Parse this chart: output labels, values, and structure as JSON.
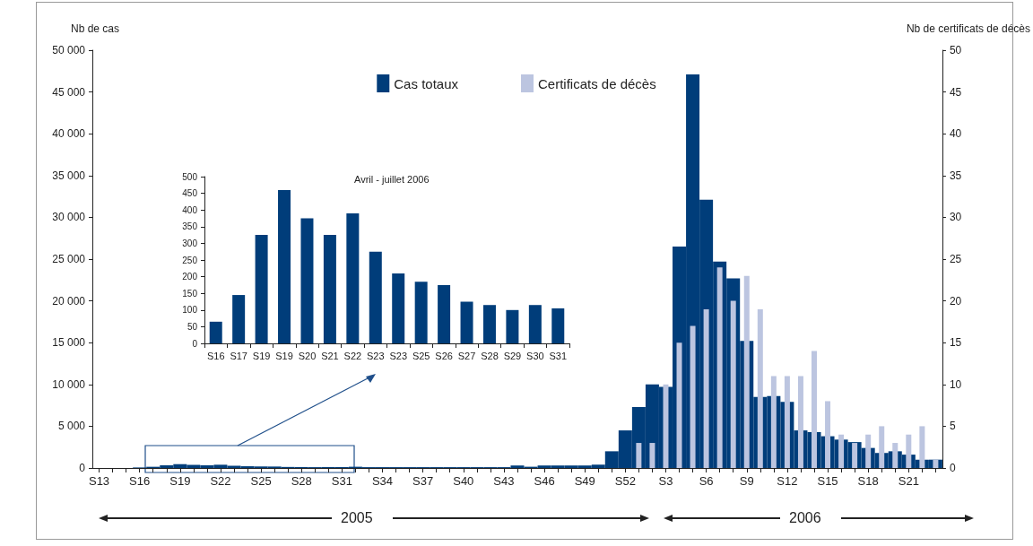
{
  "chart_data": [
    {
      "type": "bar",
      "ylabel": "Nb de cas",
      "y2label": "Nb de certificats de décès",
      "categories": [
        "S13",
        null,
        null,
        "S16",
        null,
        null,
        "S19",
        null,
        null,
        "S22",
        null,
        null,
        "S25",
        null,
        null,
        "S28",
        null,
        null,
        "S31",
        null,
        null,
        "S34",
        null,
        null,
        "S37",
        null,
        null,
        "S40",
        null,
        null,
        "S43",
        null,
        null,
        "S46",
        null,
        null,
        "S49",
        null,
        null,
        "S52",
        null,
        null,
        "S3",
        null,
        null,
        "S6",
        null,
        null,
        "S9",
        null,
        null,
        "S12",
        null,
        null,
        "S15",
        null,
        null,
        "S18",
        null,
        null,
        "S21",
        null,
        null
      ],
      "series": [
        {
          "name": "Cas totaux",
          "color": "#003d7a",
          "values": [
            0,
            0,
            0,
            65,
            145,
            325,
            460,
            375,
            325,
            390,
            275,
            210,
            185,
            175,
            125,
            115,
            100,
            115,
            105,
            150,
            100,
            100,
            100,
            100,
            100,
            100,
            100,
            100,
            100,
            100,
            100,
            300,
            150,
            300,
            300,
            300,
            300,
            400,
            2000,
            4500,
            7300,
            10000,
            9700,
            26500,
            47100,
            32100,
            24700,
            22700,
            15200,
            8500,
            8600,
            7900,
            4500,
            4300,
            3800,
            3400,
            3100,
            2400,
            1800,
            2000,
            1600,
            1000,
            1000
          ]
        },
        {
          "name": "Certificats de décès",
          "color": "#bcc5e0",
          "axis": "y2",
          "values": [
            null,
            null,
            null,
            null,
            null,
            null,
            null,
            null,
            null,
            null,
            null,
            null,
            null,
            null,
            null,
            null,
            null,
            null,
            null,
            null,
            null,
            null,
            null,
            null,
            null,
            null,
            null,
            null,
            null,
            null,
            null,
            null,
            null,
            null,
            null,
            null,
            null,
            null,
            null,
            null,
            3,
            3,
            10,
            15,
            17,
            19,
            24,
            20,
            23,
            19,
            11,
            11,
            11,
            14,
            8,
            4,
            3,
            4,
            5,
            3,
            4,
            5,
            1
          ]
        }
      ],
      "ylim": [
        0,
        50000
      ],
      "yticks": [
        0,
        {
          "value": 5000,
          "label": "5 000"
        },
        {
          "value": 10000,
          "label": "10 000"
        },
        {
          "value": 15000,
          "label": "15 000"
        },
        {
          "value": 20000,
          "label": "20 000"
        },
        {
          "value": 25000,
          "label": "25 000"
        },
        {
          "value": 30000,
          "label": "30 000"
        },
        {
          "value": 35000,
          "label": "35 000"
        },
        {
          "value": 40000,
          "label": "40 000"
        },
        {
          "value": 45000,
          "label": "45 000"
        },
        {
          "value": 50000,
          "label": "50 000"
        }
      ],
      "y2lim": [
        0,
        50
      ],
      "y2ticks": [
        0,
        5,
        10,
        15,
        20,
        25,
        30,
        35,
        40,
        45,
        50
      ],
      "legend": "top",
      "annotations": [
        "2005",
        "2006"
      ]
    },
    {
      "type": "bar",
      "title": "Avril - juillet 2006",
      "categories": [
        "S16",
        "S17",
        "S19",
        "S19",
        "S20",
        "S21",
        "S22",
        "S23",
        "S23",
        "S25",
        "S26",
        "S27",
        "S28",
        "S29",
        "S30",
        "S31"
      ],
      "values": [
        65,
        145,
        325,
        460,
        375,
        325,
        390,
        275,
        210,
        185,
        175,
        125,
        115,
        100,
        115,
        105
      ],
      "color": "#003d7a",
      "ylim": [
        0,
        500
      ],
      "yticks": [
        0,
        50,
        100,
        150,
        200,
        250,
        300,
        350,
        400,
        450,
        500
      ]
    }
  ]
}
